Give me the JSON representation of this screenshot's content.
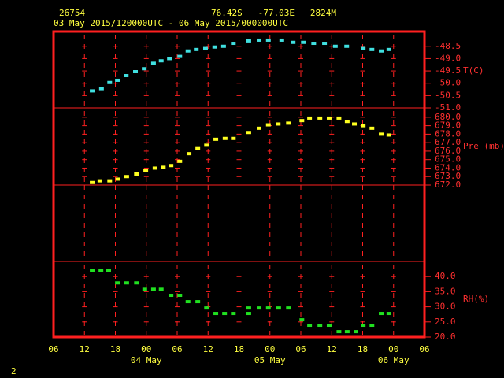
{
  "header": {
    "station": "26754",
    "location": "76.42S   -77.03E   2824M",
    "period": "03 May 2015/120000UTC - 06 May 2015/000000UTC"
  },
  "page_number": "2",
  "chart_data": [
    {
      "type": "scatter",
      "y_label": "T(C)",
      "xlim": [
        0,
        72
      ],
      "xticks": [
        {
          "value": 0,
          "label": "06"
        },
        {
          "value": 6,
          "label": "12"
        },
        {
          "value": 12,
          "label": "18"
        },
        {
          "value": 18,
          "label": "00"
        },
        {
          "value": 24,
          "label": "06"
        },
        {
          "value": 30,
          "label": "12"
        },
        {
          "value": 36,
          "label": "18"
        },
        {
          "value": 42,
          "label": "00"
        },
        {
          "value": 48,
          "label": "06"
        },
        {
          "value": 54,
          "label": "12"
        },
        {
          "value": 60,
          "label": "18"
        },
        {
          "value": 66,
          "label": "00"
        },
        {
          "value": 72,
          "label": "06"
        }
      ],
      "ylim": [
        -51.0,
        -47.9
      ],
      "yticks": [
        -48.5,
        {
          "value": -49,
          "label": "-49.0"
        },
        -49.5,
        {
          "value": -50,
          "label": "-50.0"
        },
        -50.5,
        {
          "value": -51,
          "label": "-51.0"
        }
      ],
      "series": [
        {
          "color": "#40e0e0",
          "x": [
            7.5,
            9.3,
            10.9,
            12.4,
            14.1,
            15.9,
            17.6,
            19.4,
            20.9,
            22.5,
            24.5,
            26.1,
            27.7,
            29.5,
            31.3,
            33.0,
            34.9,
            37.9,
            39.9,
            41.7,
            44.3,
            46.5,
            48.5,
            50.5,
            52.6,
            54.7,
            56.9,
            60.1,
            61.8,
            63.6,
            65.1
          ],
          "values": [
            -50.31,
            -50.22,
            -49.97,
            -49.88,
            -49.69,
            -49.53,
            -49.41,
            -49.19,
            -49.09,
            -49.0,
            -48.91,
            -48.69,
            -48.63,
            -48.59,
            -48.53,
            -48.5,
            -48.38,
            -48.28,
            -48.25,
            -48.25,
            -48.25,
            -48.34,
            -48.34,
            -48.38,
            -48.38,
            -48.5,
            -48.5,
            -48.59,
            -48.63,
            -48.69,
            -48.63
          ]
        }
      ]
    },
    {
      "type": "scatter",
      "y_label": "Pre (mb)",
      "xlim": [
        0,
        72
      ],
      "xticks": [
        {
          "value": 0,
          "label": "06"
        },
        {
          "value": 6,
          "label": "12"
        },
        {
          "value": 12,
          "label": "18"
        },
        {
          "value": 18,
          "label": "00"
        },
        {
          "value": 24,
          "label": "06"
        },
        {
          "value": 30,
          "label": "12"
        },
        {
          "value": 36,
          "label": "18"
        },
        {
          "value": 42,
          "label": "00"
        },
        {
          "value": 48,
          "label": "06"
        },
        {
          "value": 54,
          "label": "12"
        },
        {
          "value": 60,
          "label": "18"
        },
        {
          "value": 66,
          "label": "00"
        },
        {
          "value": 72,
          "label": "06"
        }
      ],
      "ylim": [
        672,
        681.1
      ],
      "yticks": [
        {
          "value": 680,
          "label": "680.0"
        },
        {
          "value": 679,
          "label": "679.0"
        },
        {
          "value": 678,
          "label": "678.0"
        },
        {
          "value": 677,
          "label": "677.0"
        },
        {
          "value": 676,
          "label": "676.0"
        },
        {
          "value": 675,
          "label": "675.0"
        },
        {
          "value": 674,
          "label": "674.0"
        },
        {
          "value": 673,
          "label": "673.0"
        },
        {
          "value": 672,
          "label": "672.0"
        }
      ],
      "series": [
        {
          "color": "#ffff20",
          "x": [
            7.5,
            9.0,
            10.9,
            12.5,
            14.2,
            16.1,
            17.9,
            19.7,
            21.3,
            22.8,
            24.5,
            26.3,
            28.0,
            29.7,
            31.5,
            33.3,
            34.9,
            37.9,
            39.9,
            41.7,
            43.6,
            45.6,
            48.2,
            49.7,
            51.7,
            53.5,
            55.4,
            57.0,
            58.4,
            60.1,
            61.8,
            63.6,
            65.1
          ],
          "values": [
            672.3,
            672.5,
            672.5,
            672.7,
            673.0,
            673.3,
            673.7,
            674.0,
            674.1,
            674.3,
            674.8,
            675.7,
            676.3,
            676.7,
            677.4,
            677.5,
            677.5,
            678.2,
            678.7,
            679.1,
            679.2,
            679.3,
            679.6,
            679.9,
            679.9,
            679.9,
            679.9,
            679.5,
            679.2,
            679.0,
            678.7,
            678.0,
            677.9
          ]
        }
      ]
    },
    {
      "type": "scatter",
      "y_label": "RH(%)",
      "xlim": [
        0,
        72
      ],
      "xticks": [
        {
          "value": 0,
          "label": "06"
        },
        {
          "value": 6,
          "label": "12"
        },
        {
          "value": 12,
          "label": "18"
        },
        {
          "value": 18,
          "label": "00"
        },
        {
          "value": 24,
          "label": "06"
        },
        {
          "value": 30,
          "label": "12"
        },
        {
          "value": 36,
          "label": "18"
        },
        {
          "value": 42,
          "label": "00"
        },
        {
          "value": 48,
          "label": "06"
        },
        {
          "value": 54,
          "label": "12"
        },
        {
          "value": 60,
          "label": "18"
        },
        {
          "value": 66,
          "label": "00"
        },
        {
          "value": 72,
          "label": "06"
        }
      ],
      "x_date_labels": [
        {
          "value": 18,
          "label": "04 May"
        },
        {
          "value": 42,
          "label": "05 May"
        },
        {
          "value": 66,
          "label": "06 May"
        }
      ],
      "ylim": [
        20,
        45
      ],
      "yticks": [
        {
          "value": 40,
          "label": "40.0"
        },
        {
          "value": 35,
          "label": "35.0"
        },
        {
          "value": 30,
          "label": "30.0"
        },
        {
          "value": 25,
          "label": "25.0"
        },
        {
          "value": 20,
          "label": "20.0"
        }
      ],
      "series": [
        {
          "color": "#20e020",
          "x": [
            7.5,
            9.2,
            10.7,
            12.4,
            14.2,
            16.1,
            17.7,
            19.4,
            20.9,
            22.8,
            24.5,
            26.1,
            28.0,
            29.7,
            31.5,
            33.2,
            34.9,
            37.9,
            37.9,
            39.9,
            41.7,
            43.7,
            45.6,
            48.2,
            49.7,
            51.7,
            53.5,
            55.4,
            57.0,
            58.7,
            60.1,
            61.8,
            63.6,
            65.1
          ],
          "values": [
            42.1,
            42.1,
            42.1,
            37.9,
            37.9,
            37.9,
            35.8,
            35.8,
            35.8,
            33.8,
            33.8,
            31.7,
            31.7,
            29.6,
            27.8,
            27.8,
            27.8,
            29.6,
            27.8,
            29.6,
            29.6,
            29.6,
            29.6,
            25.7,
            23.9,
            23.9,
            23.9,
            21.8,
            21.8,
            21.8,
            23.9,
            23.9,
            27.8,
            27.8
          ]
        }
      ]
    }
  ]
}
